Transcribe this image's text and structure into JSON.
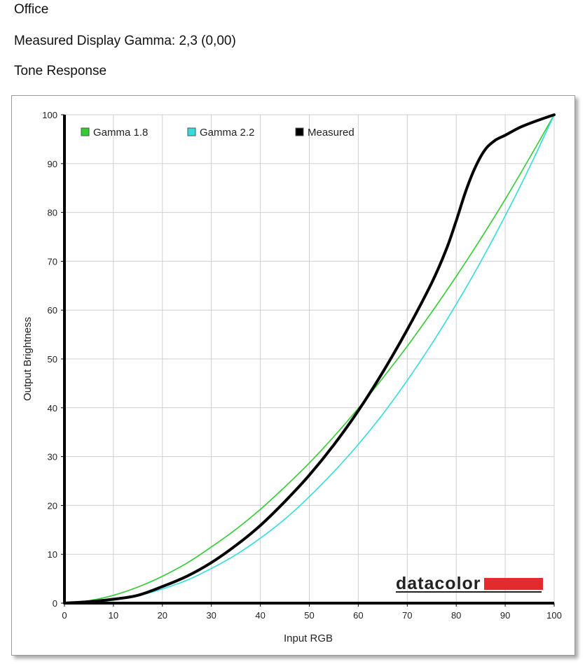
{
  "header": {
    "profile_name": "Office",
    "gamma_line": "Measured Display Gamma: 2,3 (0,00)",
    "section_title": "Tone Response"
  },
  "colors": {
    "gamma18": "#33cc33",
    "gamma22": "#33dddd",
    "measured": "#000000",
    "grid": "#cfcfcf",
    "logo_bar": "#e32b2b"
  },
  "logo": {
    "text": "datacolor"
  },
  "chart_data": {
    "type": "line",
    "xlabel": "Input RGB",
    "ylabel": "Output Brightness",
    "xlim": [
      0,
      100
    ],
    "ylim": [
      0,
      100
    ],
    "xticks": [
      0,
      10,
      20,
      30,
      40,
      50,
      60,
      70,
      80,
      90,
      100
    ],
    "yticks": [
      0,
      10,
      20,
      30,
      40,
      50,
      60,
      70,
      80,
      90,
      100
    ],
    "grid": true,
    "legend_position": "top-left",
    "series": [
      {
        "name": "Gamma 1.8",
        "color": "#33cc33",
        "x": [
          0,
          5,
          10,
          15,
          20,
          25,
          30,
          35,
          40,
          45,
          50,
          55,
          60,
          65,
          70,
          75,
          80,
          85,
          90,
          95,
          100
        ],
        "y": [
          0,
          0.5,
          1.6,
          3.3,
          5.5,
          8.2,
          11.5,
          15.1,
          19.2,
          23.8,
          28.7,
          34.1,
          39.9,
          46.1,
          52.6,
          59.6,
          66.9,
          74.6,
          82.7,
          91.2,
          100
        ]
      },
      {
        "name": "Gamma 2.2",
        "color": "#33dddd",
        "x": [
          0,
          5,
          10,
          15,
          20,
          25,
          30,
          35,
          40,
          45,
          50,
          55,
          60,
          65,
          70,
          75,
          80,
          85,
          90,
          95,
          100
        ],
        "y": [
          0,
          0.1,
          0.6,
          1.5,
          2.9,
          4.7,
          7.1,
          9.9,
          13.3,
          17.2,
          21.8,
          26.9,
          32.5,
          38.7,
          45.6,
          53.1,
          61.2,
          69.9,
          79.3,
          89.3,
          100
        ]
      },
      {
        "name": "Measured",
        "color": "#000000",
        "x": [
          0,
          5,
          10,
          15,
          20,
          25,
          30,
          35,
          40,
          45,
          50,
          55,
          60,
          65,
          70,
          75,
          78,
          80,
          82,
          84,
          86,
          88,
          90,
          93,
          96,
          100
        ],
        "y": [
          0,
          0.3,
          0.8,
          1.6,
          3.4,
          5.5,
          8.3,
          11.8,
          15.9,
          20.8,
          26.2,
          32.4,
          39.4,
          47.3,
          56.0,
          65.6,
          72.5,
          78.3,
          84.5,
          89.5,
          93.0,
          94.8,
          95.8,
          97.4,
          98.6,
          100
        ]
      }
    ]
  }
}
